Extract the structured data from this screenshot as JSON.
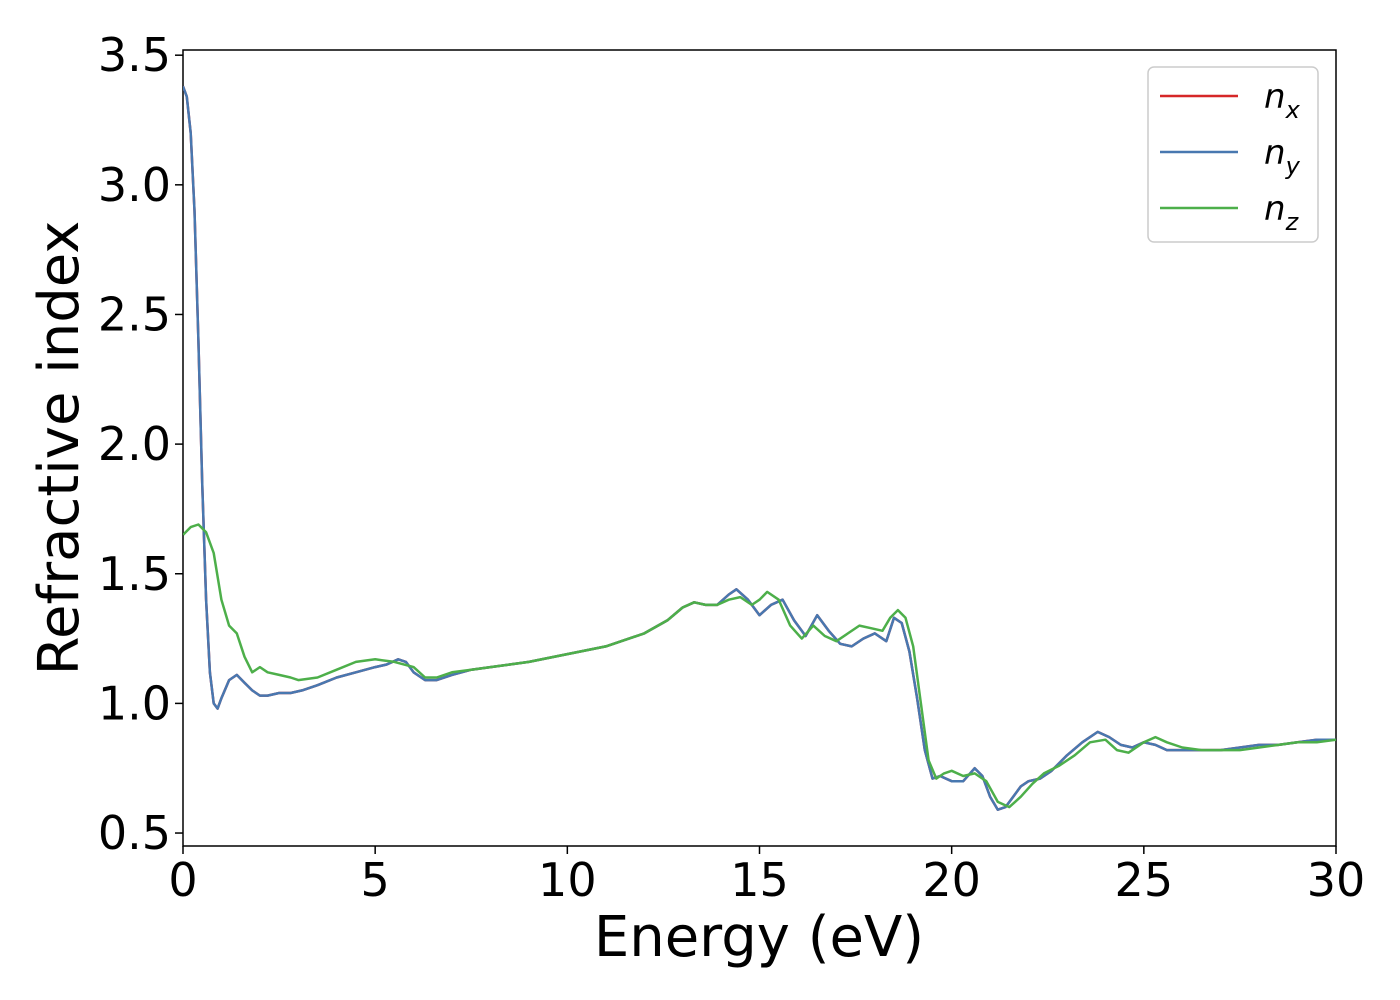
{
  "chart_data": {
    "type": "line",
    "title": "",
    "xlabel": "Energy (eV)",
    "ylabel": "Refractive index",
    "xlim": [
      0,
      30
    ],
    "ylim": [
      0.45,
      3.52
    ],
    "xticks": [
      0,
      5,
      10,
      15,
      20,
      25,
      30
    ],
    "xtick_labels": [
      "0",
      "5",
      "10",
      "15",
      "20",
      "25",
      "30"
    ],
    "yticks": [
      0.5,
      1.0,
      1.5,
      2.0,
      2.5,
      3.0,
      3.5
    ],
    "ytick_labels": [
      "0.5",
      "1.0",
      "1.5",
      "2.0",
      "2.5",
      "3.0",
      "3.5"
    ],
    "grid": false,
    "legend_position": "top-right",
    "series": [
      {
        "name": "n",
        "subscript": "x",
        "color": "#d62728",
        "x": [
          0,
          0.1,
          0.2,
          0.3,
          0.4,
          0.5,
          0.6,
          0.7,
          0.8,
          0.9,
          1.0,
          1.2,
          1.4,
          1.6,
          1.8,
          2.0,
          2.2,
          2.5,
          2.8,
          3.1,
          3.5,
          4.0,
          4.5,
          5.0,
          5.3,
          5.6,
          5.8,
          6.0,
          6.3,
          6.6,
          7.0,
          7.5,
          8.0,
          8.5,
          9.0,
          10.0,
          11.0,
          12.0,
          12.6,
          13.0,
          13.3,
          13.6,
          13.9,
          14.2,
          14.4,
          14.7,
          15.0,
          15.3,
          15.6,
          15.9,
          16.2,
          16.5,
          16.8,
          17.1,
          17.4,
          17.7,
          18.0,
          18.3,
          18.5,
          18.7,
          18.9,
          19.1,
          19.3,
          19.5,
          19.7,
          20.0,
          20.3,
          20.6,
          20.8,
          21.0,
          21.2,
          21.4,
          21.6,
          21.8,
          22.0,
          22.3,
          22.6,
          23.0,
          23.4,
          23.8,
          24.1,
          24.4,
          24.7,
          25.0,
          25.3,
          25.6,
          26.0,
          26.5,
          27.0,
          27.5,
          28.0,
          28.5,
          29.0,
          29.5,
          30.0
        ],
        "y": [
          3.38,
          3.34,
          3.2,
          2.9,
          2.4,
          1.85,
          1.4,
          1.12,
          1.0,
          0.98,
          1.02,
          1.09,
          1.11,
          1.08,
          1.05,
          1.03,
          1.03,
          1.04,
          1.04,
          1.05,
          1.07,
          1.1,
          1.12,
          1.14,
          1.15,
          1.17,
          1.16,
          1.12,
          1.09,
          1.09,
          1.11,
          1.13,
          1.14,
          1.15,
          1.16,
          1.19,
          1.22,
          1.27,
          1.32,
          1.37,
          1.39,
          1.38,
          1.38,
          1.42,
          1.44,
          1.4,
          1.34,
          1.38,
          1.4,
          1.32,
          1.26,
          1.34,
          1.28,
          1.23,
          1.22,
          1.25,
          1.27,
          1.24,
          1.33,
          1.31,
          1.2,
          1.02,
          0.82,
          0.71,
          0.72,
          0.7,
          0.7,
          0.75,
          0.72,
          0.64,
          0.59,
          0.6,
          0.64,
          0.68,
          0.7,
          0.71,
          0.74,
          0.8,
          0.85,
          0.89,
          0.87,
          0.84,
          0.83,
          0.85,
          0.84,
          0.82,
          0.82,
          0.82,
          0.82,
          0.83,
          0.84,
          0.84,
          0.85,
          0.86,
          0.86
        ]
      },
      {
        "name": "n",
        "subscript": "y",
        "color": "#4878b0",
        "x": [
          0,
          0.1,
          0.2,
          0.3,
          0.4,
          0.5,
          0.6,
          0.7,
          0.8,
          0.9,
          1.0,
          1.2,
          1.4,
          1.6,
          1.8,
          2.0,
          2.2,
          2.5,
          2.8,
          3.1,
          3.5,
          4.0,
          4.5,
          5.0,
          5.3,
          5.6,
          5.8,
          6.0,
          6.3,
          6.6,
          7.0,
          7.5,
          8.0,
          8.5,
          9.0,
          10.0,
          11.0,
          12.0,
          12.6,
          13.0,
          13.3,
          13.6,
          13.9,
          14.2,
          14.4,
          14.7,
          15.0,
          15.3,
          15.6,
          15.9,
          16.2,
          16.5,
          16.8,
          17.1,
          17.4,
          17.7,
          18.0,
          18.3,
          18.5,
          18.7,
          18.9,
          19.1,
          19.3,
          19.5,
          19.7,
          20.0,
          20.3,
          20.6,
          20.8,
          21.0,
          21.2,
          21.4,
          21.6,
          21.8,
          22.0,
          22.3,
          22.6,
          23.0,
          23.4,
          23.8,
          24.1,
          24.4,
          24.7,
          25.0,
          25.3,
          25.6,
          26.0,
          26.5,
          27.0,
          27.5,
          28.0,
          28.5,
          29.0,
          29.5,
          30.0
        ],
        "y": [
          3.38,
          3.34,
          3.2,
          2.9,
          2.4,
          1.85,
          1.4,
          1.12,
          1.0,
          0.98,
          1.02,
          1.09,
          1.11,
          1.08,
          1.05,
          1.03,
          1.03,
          1.04,
          1.04,
          1.05,
          1.07,
          1.1,
          1.12,
          1.14,
          1.15,
          1.17,
          1.16,
          1.12,
          1.09,
          1.09,
          1.11,
          1.13,
          1.14,
          1.15,
          1.16,
          1.19,
          1.22,
          1.27,
          1.32,
          1.37,
          1.39,
          1.38,
          1.38,
          1.42,
          1.44,
          1.4,
          1.34,
          1.38,
          1.4,
          1.32,
          1.26,
          1.34,
          1.28,
          1.23,
          1.22,
          1.25,
          1.27,
          1.24,
          1.33,
          1.31,
          1.2,
          1.02,
          0.82,
          0.71,
          0.72,
          0.7,
          0.7,
          0.75,
          0.72,
          0.64,
          0.59,
          0.6,
          0.64,
          0.68,
          0.7,
          0.71,
          0.74,
          0.8,
          0.85,
          0.89,
          0.87,
          0.84,
          0.83,
          0.85,
          0.84,
          0.82,
          0.82,
          0.82,
          0.82,
          0.83,
          0.84,
          0.84,
          0.85,
          0.86,
          0.86
        ]
      },
      {
        "name": "n",
        "subscript": "z",
        "color": "#4daf4a",
        "x": [
          0,
          0.2,
          0.4,
          0.6,
          0.8,
          1.0,
          1.2,
          1.4,
          1.6,
          1.8,
          2.0,
          2.2,
          2.5,
          2.8,
          3.0,
          3.5,
          4.0,
          4.5,
          5.0,
          5.5,
          6.0,
          6.3,
          6.6,
          7.0,
          7.5,
          8.0,
          8.5,
          9.0,
          10.0,
          11.0,
          12.0,
          12.6,
          13.0,
          13.3,
          13.6,
          13.9,
          14.2,
          14.5,
          14.8,
          15.0,
          15.2,
          15.5,
          15.8,
          16.1,
          16.4,
          16.7,
          17.0,
          17.3,
          17.6,
          17.9,
          18.2,
          18.4,
          18.6,
          18.8,
          19.0,
          19.2,
          19.4,
          19.6,
          19.8,
          20.0,
          20.3,
          20.6,
          20.9,
          21.2,
          21.5,
          21.8,
          22.1,
          22.4,
          22.8,
          23.2,
          23.6,
          24.0,
          24.3,
          24.6,
          25.0,
          25.3,
          25.6,
          26.0,
          26.5,
          27.0,
          27.5,
          28.0,
          28.5,
          29.0,
          29.5,
          30.0
        ],
        "y": [
          1.65,
          1.68,
          1.69,
          1.66,
          1.58,
          1.4,
          1.3,
          1.27,
          1.18,
          1.12,
          1.14,
          1.12,
          1.11,
          1.1,
          1.09,
          1.1,
          1.13,
          1.16,
          1.17,
          1.16,
          1.14,
          1.1,
          1.1,
          1.12,
          1.13,
          1.14,
          1.15,
          1.16,
          1.19,
          1.22,
          1.27,
          1.32,
          1.37,
          1.39,
          1.38,
          1.38,
          1.4,
          1.41,
          1.38,
          1.4,
          1.43,
          1.4,
          1.3,
          1.25,
          1.3,
          1.26,
          1.24,
          1.27,
          1.3,
          1.29,
          1.28,
          1.33,
          1.36,
          1.33,
          1.22,
          1.0,
          0.78,
          0.71,
          0.73,
          0.74,
          0.72,
          0.73,
          0.7,
          0.62,
          0.6,
          0.64,
          0.69,
          0.73,
          0.76,
          0.8,
          0.85,
          0.86,
          0.82,
          0.81,
          0.85,
          0.87,
          0.85,
          0.83,
          0.82,
          0.82,
          0.82,
          0.83,
          0.84,
          0.85,
          0.85,
          0.86
        ]
      }
    ]
  }
}
